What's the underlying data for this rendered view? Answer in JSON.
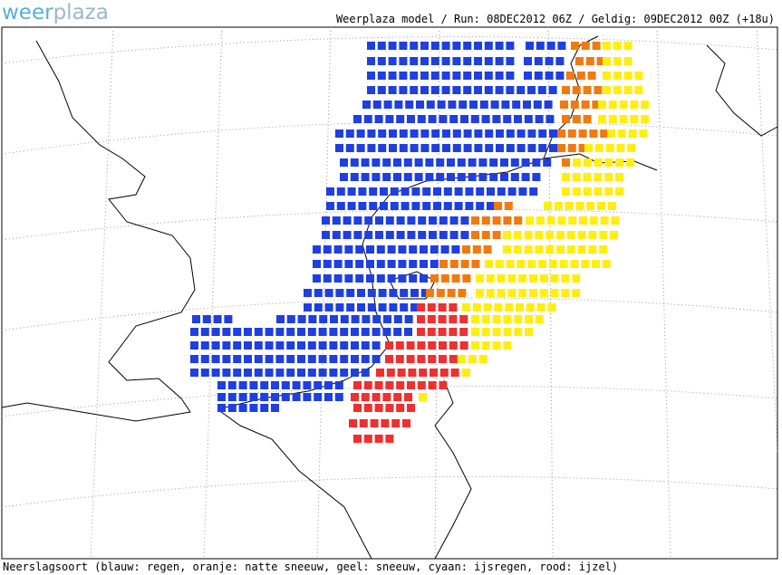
{
  "logo": {
    "part1": "weer",
    "part2": "plaza"
  },
  "header": "Weerplaza model / Run: 08DEC2012 06Z / Geldig: 09DEC2012 00Z (+18u)",
  "footer": "Neerslagsoort (blauw: regen, oranje: natte sneeuw, geel: sneeuw, cyaan: ijsregen, rood: ijzel)"
}
